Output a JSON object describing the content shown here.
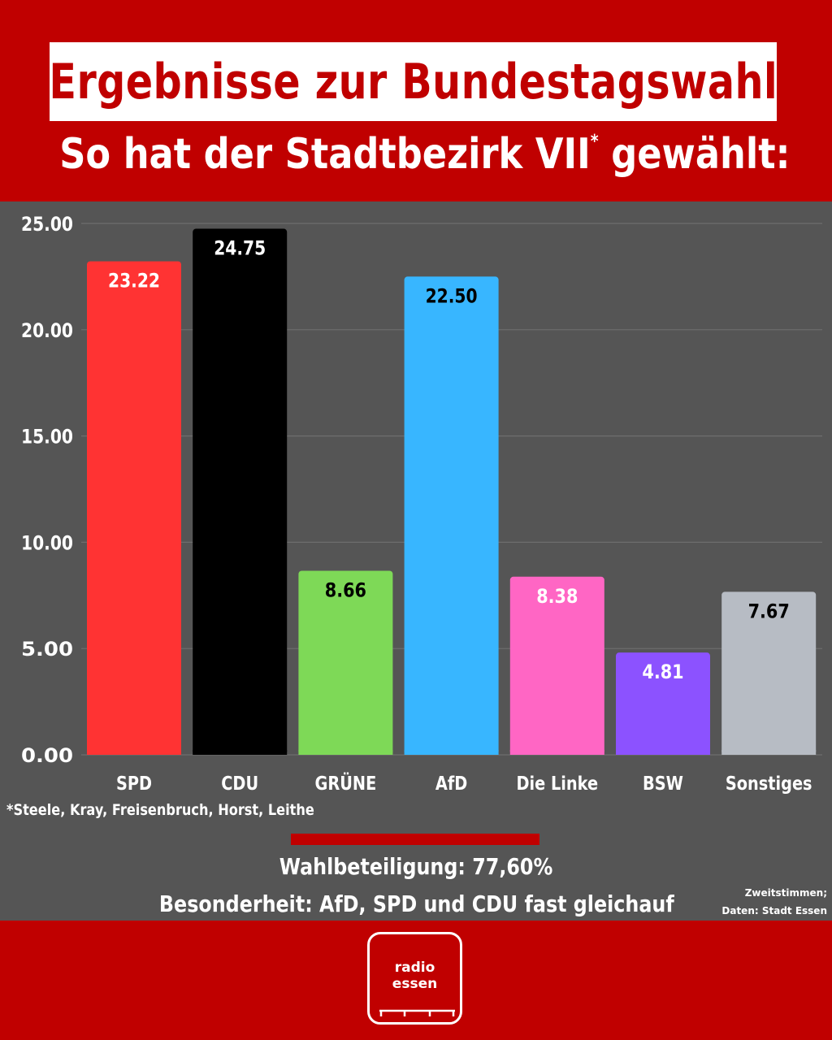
{
  "header": {
    "title": "Ergebnisse zur Bundestagswahl",
    "subtitle": "So hat der Stadtbezirk VII",
    "subtitle_mark": "*",
    "subtitle_end": " gewählt:"
  },
  "chart_data": {
    "type": "bar",
    "categories": [
      "SPD",
      "CDU",
      "GRÜNE",
      "AfD",
      "Die Linke",
      "BSW",
      "Sonstiges"
    ],
    "values": [
      23.22,
      24.75,
      8.66,
      22.5,
      8.38,
      4.81,
      7.67
    ],
    "value_labels": [
      "23.22",
      "24.75",
      "8.66",
      "22.50",
      "8.38",
      "4.81",
      "7.67"
    ],
    "colors": [
      "#ff3333",
      "#000000",
      "#7ed957",
      "#38b6ff",
      "#ff66c4",
      "#8c52ff",
      "#b7bcc4"
    ],
    "label_colors": [
      "#ffffff",
      "#ffffff",
      "#000000",
      "#000000",
      "#ffffff",
      "#ffffff",
      "#000000"
    ],
    "ylim": [
      0,
      25
    ],
    "yticks": [
      0,
      5,
      10,
      15,
      20,
      25
    ],
    "ytick_labels": [
      "0.00",
      "5.00",
      "10.00",
      "15.00",
      "20.00",
      "25.00"
    ],
    "grid": true
  },
  "footnote": "*Steele, Kray, Freisenbruch, Horst, Leithe",
  "turnout": "Wahlbeteiligung: 77,60%",
  "remark": "Besonderheit: AfD, SPD und CDU fast gleichauf",
  "source": {
    "line1": "Zweitstimmen;",
    "line2": "Daten: Stadt Essen"
  },
  "logo": {
    "line1": "radio",
    "line2": "essen"
  },
  "colors": {
    "brand_red": "#c00000",
    "panel_gray": "#555555"
  }
}
